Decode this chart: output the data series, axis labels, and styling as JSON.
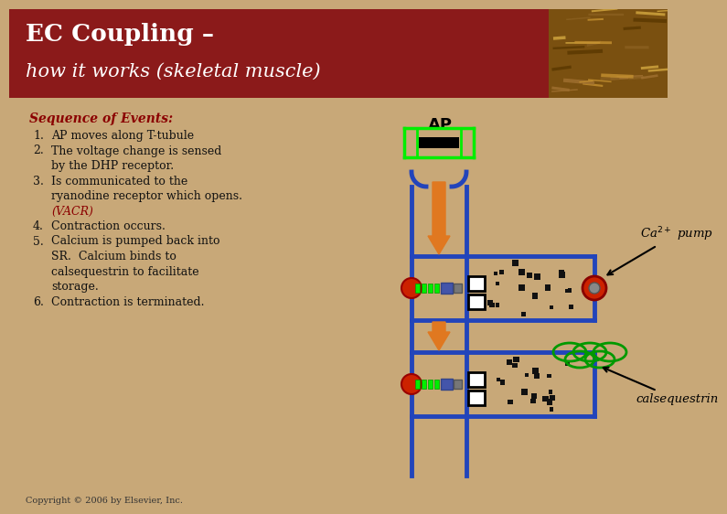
{
  "title_line1": "EC Coupling –",
  "title_line2": "how it works (skeletal muscle)",
  "header_bg": "#8B1A1A",
  "body_bg": "#C8A878",
  "title_color": "#FFFFFF",
  "seq_title": "Sequence of Events:",
  "seq_title_color": "#8B0000",
  "step_color": "#111111",
  "vacr_color": "#8B0000",
  "copyright": "Copyright © 2006 by Elsevier, Inc.",
  "ap_label": "AP",
  "tube_color": "#2244BB",
  "orange_color": "#E07820",
  "green_color": "#00EE00",
  "red_color": "#CC2200",
  "ca_pump_label": "Ca$^{2+}$ pump",
  "calseq_label": "calsequestrin"
}
